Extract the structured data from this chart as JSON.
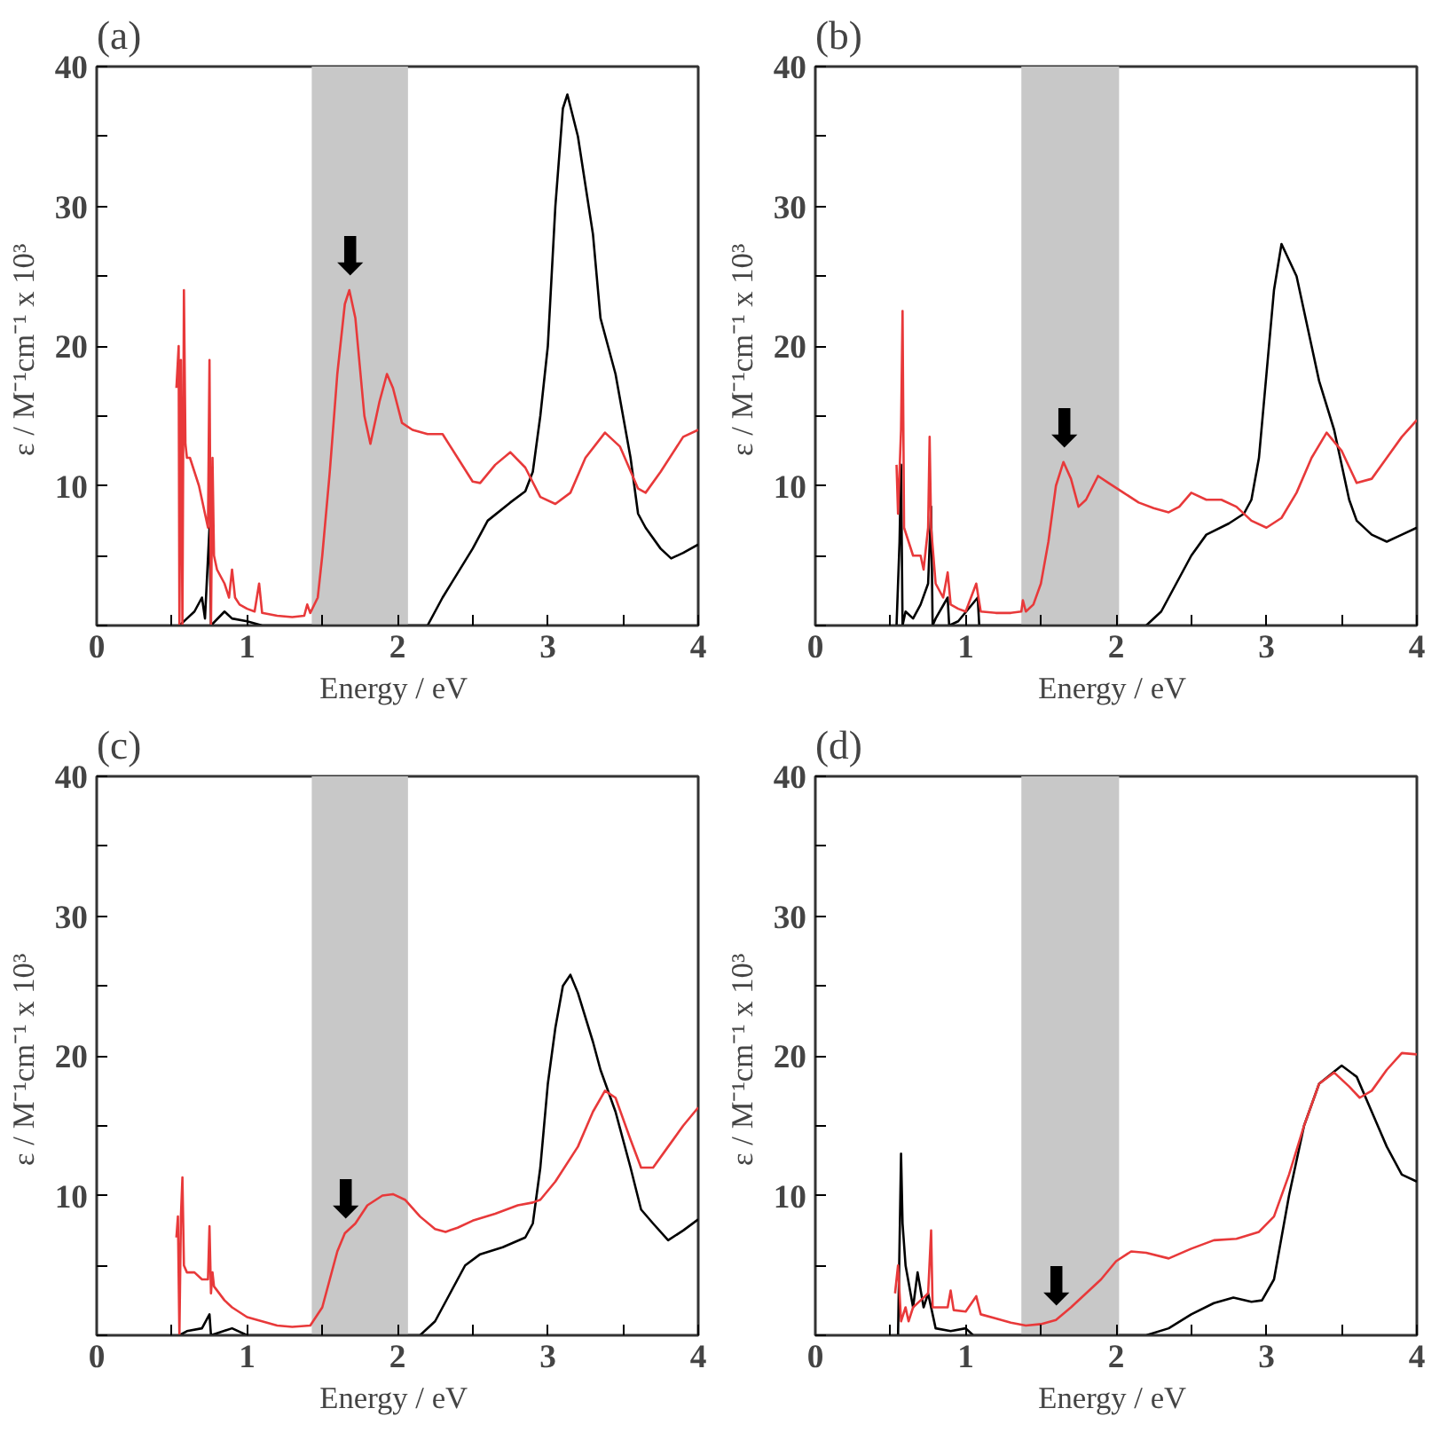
{
  "chart_data": [
    {
      "type": "line",
      "title": "(a)",
      "xlabel": "Energy  / eV",
      "ylabel": "ε / M⁻¹cm⁻¹  x 10³",
      "xlim": [
        0,
        4
      ],
      "ylim": [
        0,
        40
      ],
      "xticks": [
        0,
        {
          "value": 0.5,
          "label": null
        },
        1,
        {
          "value": 1.5,
          "label": null
        },
        2,
        {
          "value": 2.5,
          "label": null
        },
        3,
        {
          "value": 3.5,
          "label": null
        },
        4
      ],
      "yticks": [
        {
          "value": 0,
          "label": null
        },
        {
          "value": 5,
          "label": null
        },
        10,
        {
          "value": 15,
          "label": null
        },
        20,
        {
          "value": 25,
          "label": null
        },
        30,
        {
          "value": 35,
          "label": null
        },
        40
      ],
      "grid": false,
      "bands": [
        {
          "axis": "x",
          "from": 1.43,
          "to": 2.07,
          "color": "#c8c8c8"
        }
      ],
      "annotations": [
        {
          "text": "⬇",
          "x": 1.68,
          "y": 24
        }
      ],
      "series": [
        {
          "color": "#000000",
          "x": [
            0.55,
            0.6,
            0.65,
            0.7,
            0.72,
            0.75,
            0.76,
            0.85,
            0.9,
            1.0,
            1.1,
            2.2,
            2.3,
            2.5,
            2.6,
            2.75,
            2.85,
            2.9,
            2.95,
            3.0,
            3.05,
            3.1,
            3.13,
            3.2,
            3.3,
            3.35,
            3.45,
            3.55,
            3.6,
            3.65,
            3.75,
            3.82,
            3.9,
            4.0
          ],
          "values": [
            0,
            0.5,
            1,
            2,
            0.5,
            7,
            0,
            1,
            0.5,
            0.3,
            0,
            0,
            2,
            5.5,
            7.5,
            8.8,
            9.6,
            11,
            15,
            20,
            30,
            37,
            38,
            35,
            28,
            22,
            18,
            12,
            8,
            7,
            5.5,
            4.8,
            5.2,
            5.8
          ]
        },
        {
          "color": "#e8393a",
          "x": [
            0.53,
            0.545,
            0.55,
            0.56,
            0.57,
            0.58,
            0.59,
            0.6,
            0.62,
            0.65,
            0.68,
            0.7,
            0.72,
            0.74,
            0.75,
            0.76,
            0.77,
            0.78,
            0.8,
            0.85,
            0.88,
            0.9,
            0.92,
            0.95,
            1.0,
            1.05,
            1.08,
            1.1,
            1.2,
            1.3,
            1.38,
            1.4,
            1.42,
            1.47,
            1.5,
            1.55,
            1.6,
            1.65,
            1.68,
            1.72,
            1.78,
            1.82,
            1.88,
            1.93,
            1.97,
            2.03,
            2.1,
            2.2,
            2.3,
            2.4,
            2.5,
            2.55,
            2.65,
            2.75,
            2.85,
            2.95,
            3.05,
            3.15,
            3.25,
            3.38,
            3.48,
            3.6,
            3.65,
            3.75,
            3.9,
            4.0
          ],
          "values": [
            17,
            20,
            0,
            19,
            0,
            24,
            13,
            12,
            12,
            11,
            10,
            9,
            8,
            7,
            19,
            0,
            12,
            5,
            4,
            3,
            2,
            4,
            2,
            1.5,
            1.2,
            1,
            3,
            0.9,
            0.7,
            0.6,
            0.7,
            1.5,
            0.9,
            2,
            5,
            11,
            18,
            23,
            24,
            22,
            15,
            13,
            16,
            18,
            17,
            14.5,
            14,
            13.7,
            13.7,
            12,
            10.3,
            10.2,
            11.5,
            12.4,
            11.3,
            9.2,
            8.7,
            9.5,
            12,
            13.8,
            12.8,
            9.8,
            9.5,
            11,
            13.5,
            14
          ]
        }
      ]
    },
    {
      "type": "line",
      "title": "(b)",
      "xlabel": "Energy  / eV",
      "ylabel": "ε / M⁻¹cm⁻¹  x 10³",
      "xlim": [
        0,
        4
      ],
      "ylim": [
        0,
        40
      ],
      "xticks": [
        0,
        {
          "value": 0.5,
          "label": null
        },
        1,
        {
          "value": 1.5,
          "label": null
        },
        2,
        {
          "value": 2.5,
          "label": null
        },
        3,
        {
          "value": 3.5,
          "label": null
        },
        4
      ],
      "yticks": [
        {
          "value": 0,
          "label": null
        },
        {
          "value": 5,
          "label": null
        },
        10,
        {
          "value": 15,
          "label": null
        },
        20,
        {
          "value": 25,
          "label": null
        },
        30,
        {
          "value": 35,
          "label": null
        },
        40
      ],
      "grid": false,
      "bands": [
        {
          "axis": "x",
          "from": 1.37,
          "to": 2.02,
          "color": "#c8c8c8"
        }
      ],
      "annotations": [
        {
          "text": "⬇",
          "x": 1.65,
          "y": 11.7
        }
      ],
      "series": [
        {
          "color": "#000000",
          "x": [
            0.54,
            0.56,
            0.57,
            0.58,
            0.6,
            0.65,
            0.7,
            0.75,
            0.77,
            0.78,
            0.8,
            0.88,
            0.89,
            0.95,
            1.08,
            1.09,
            1.15,
            2.2,
            2.3,
            2.4,
            2.5,
            2.6,
            2.75,
            2.85,
            2.9,
            2.95,
            3.0,
            3.05,
            3.1,
            3.2,
            3.3,
            3.35,
            3.45,
            3.55,
            3.6,
            3.7,
            3.8,
            3.9,
            4.0
          ],
          "values": [
            0,
            6,
            11.5,
            0,
            1,
            0.5,
            1.5,
            3,
            8.5,
            0,
            0.5,
            2,
            0,
            0.3,
            2,
            0,
            0,
            0,
            1,
            3,
            5,
            6.5,
            7.3,
            8,
            9,
            12,
            18,
            24,
            27.3,
            25,
            20,
            17.5,
            14,
            9,
            7.5,
            6.5,
            6,
            6.5,
            7
          ]
        },
        {
          "color": "#e8393a",
          "x": [
            0.54,
            0.55,
            0.57,
            0.58,
            0.59,
            0.62,
            0.65,
            0.7,
            0.72,
            0.75,
            0.76,
            0.77,
            0.8,
            0.85,
            0.88,
            0.9,
            0.95,
            1.0,
            1.07,
            1.1,
            1.2,
            1.3,
            1.37,
            1.38,
            1.4,
            1.45,
            1.5,
            1.55,
            1.6,
            1.65,
            1.7,
            1.75,
            1.8,
            1.88,
            1.95,
            2.05,
            2.15,
            2.25,
            2.35,
            2.42,
            2.5,
            2.6,
            2.7,
            2.8,
            2.9,
            3.0,
            3.1,
            3.2,
            3.3,
            3.4,
            3.5,
            3.6,
            3.7,
            3.8,
            3.9,
            4.0
          ],
          "values": [
            11.5,
            8,
            14,
            22.5,
            7,
            6,
            5,
            5,
            4,
            7,
            13.5,
            7,
            3,
            2,
            3.8,
            1.5,
            1.2,
            1,
            3,
            1,
            0.9,
            0.9,
            1,
            1.8,
            1,
            1.5,
            3,
            6,
            10,
            11.7,
            10.5,
            8.5,
            9,
            10.7,
            10.2,
            9.5,
            8.8,
            8.4,
            8.1,
            8.5,
            9.5,
            9,
            9,
            8.5,
            7.5,
            7,
            7.7,
            9.5,
            12,
            13.8,
            12.5,
            10.2,
            10.5,
            12,
            13.5,
            14.7
          ]
        }
      ]
    },
    {
      "type": "line",
      "title": "(c)",
      "xlabel": "Energy  / eV",
      "ylabel": "ε / M⁻¹cm⁻¹  x 10³",
      "xlim": [
        0,
        4
      ],
      "ylim": [
        0,
        40
      ],
      "xticks": [
        0,
        {
          "value": 0.5,
          "label": null
        },
        1,
        {
          "value": 1.5,
          "label": null
        },
        2,
        {
          "value": 2.5,
          "label": null
        },
        3,
        {
          "value": 3.5,
          "label": null
        },
        4
      ],
      "yticks": [
        {
          "value": 0,
          "label": null
        },
        {
          "value": 5,
          "label": null
        },
        10,
        {
          "value": 15,
          "label": null
        },
        20,
        {
          "value": 25,
          "label": null
        },
        30,
        {
          "value": 35,
          "label": null
        },
        40
      ],
      "grid": false,
      "bands": [
        {
          "axis": "x",
          "from": 1.43,
          "to": 2.07,
          "color": "#c8c8c8"
        }
      ],
      "annotations": [
        {
          "text": "⬇",
          "x": 1.65,
          "y": 7.3
        }
      ],
      "series": [
        {
          "color": "#000000",
          "x": [
            0.55,
            0.6,
            0.7,
            0.75,
            0.76,
            0.9,
            1.0,
            2.15,
            2.25,
            2.35,
            2.45,
            2.55,
            2.7,
            2.85,
            2.9,
            2.95,
            3.0,
            3.05,
            3.1,
            3.15,
            3.2,
            3.3,
            3.35,
            3.45,
            3.55,
            3.62,
            3.7,
            3.8,
            3.9,
            4.0
          ],
          "values": [
            0,
            0.3,
            0.5,
            1.5,
            0,
            0.5,
            0,
            0,
            1,
            3,
            5,
            5.8,
            6.3,
            7,
            8,
            12,
            18,
            22,
            25,
            25.8,
            24.5,
            21,
            19,
            16,
            12,
            9,
            8,
            6.8,
            7.5,
            8.3
          ]
        },
        {
          "color": "#e8393a",
          "x": [
            0.53,
            0.54,
            0.55,
            0.56,
            0.57,
            0.58,
            0.6,
            0.65,
            0.7,
            0.74,
            0.75,
            0.76,
            0.77,
            0.78,
            0.85,
            0.9,
            1.0,
            1.1,
            1.2,
            1.3,
            1.42,
            1.5,
            1.55,
            1.6,
            1.65,
            1.72,
            1.8,
            1.9,
            1.97,
            2.05,
            2.15,
            2.25,
            2.32,
            2.4,
            2.5,
            2.65,
            2.8,
            2.9,
            2.95,
            3.05,
            3.2,
            3.3,
            3.38,
            3.45,
            3.55,
            3.62,
            3.7,
            3.8,
            3.9,
            4.0
          ],
          "values": [
            7,
            8.5,
            0,
            8.5,
            11.3,
            5,
            4.5,
            4.5,
            4,
            4,
            7.8,
            3,
            4.5,
            3.5,
            2.5,
            2,
            1.3,
            1,
            0.7,
            0.6,
            0.7,
            2,
            4,
            6,
            7.3,
            8,
            9.3,
            10,
            10.1,
            9.7,
            8.5,
            7.6,
            7.4,
            7.7,
            8.2,
            8.7,
            9.3,
            9.5,
            9.7,
            11,
            13.5,
            16,
            17.5,
            17,
            14,
            12,
            12,
            13.5,
            15,
            16.3
          ]
        }
      ]
    },
    {
      "type": "line",
      "title": "(d)",
      "xlabel": "Energy  / eV",
      "ylabel": "ε / M⁻¹cm⁻¹  x 10³",
      "xlim": [
        0,
        4
      ],
      "ylim": [
        0,
        40
      ],
      "xticks": [
        0,
        {
          "value": 0.5,
          "label": null
        },
        1,
        {
          "value": 1.5,
          "label": null
        },
        2,
        {
          "value": 2.5,
          "label": null
        },
        3,
        {
          "value": 3.5,
          "label": null
        },
        4
      ],
      "yticks": [
        {
          "value": 0,
          "label": null
        },
        {
          "value": 5,
          "label": null
        },
        10,
        {
          "value": 15,
          "label": null
        },
        20,
        {
          "value": 25,
          "label": null
        },
        30,
        {
          "value": 35,
          "label": null
        },
        40
      ],
      "grid": false,
      "bands": [
        {
          "axis": "x",
          "from": 1.37,
          "to": 2.02,
          "color": "#c8c8c8"
        }
      ],
      "annotations": [
        {
          "text": "⬇",
          "x": 1.6,
          "y": 1.1
        }
      ],
      "series": [
        {
          "color": "#000000",
          "x": [
            0.55,
            0.57,
            0.58,
            0.6,
            0.65,
            0.68,
            0.72,
            0.75,
            0.8,
            0.9,
            1.0,
            1.05,
            2.2,
            2.35,
            2.5,
            2.65,
            2.78,
            2.9,
            2.97,
            3.05,
            3.15,
            3.25,
            3.35,
            3.5,
            3.6,
            3.7,
            3.8,
            3.9,
            4.0
          ],
          "values": [
            0,
            13,
            8,
            5,
            2,
            4.5,
            2,
            3,
            0.5,
            0.3,
            0.5,
            0,
            0,
            0.5,
            1.5,
            2.3,
            2.7,
            2.4,
            2.5,
            4,
            10,
            15,
            18,
            19.3,
            18.5,
            16,
            13.5,
            11.5,
            11
          ]
        },
        {
          "color": "#e8393a",
          "x": [
            0.53,
            0.55,
            0.57,
            0.6,
            0.62,
            0.65,
            0.7,
            0.75,
            0.77,
            0.78,
            0.8,
            0.88,
            0.9,
            0.92,
            1.0,
            1.07,
            1.1,
            1.2,
            1.3,
            1.4,
            1.5,
            1.6,
            1.7,
            1.8,
            1.9,
            2.0,
            2.1,
            2.2,
            2.35,
            2.5,
            2.65,
            2.8,
            2.95,
            3.05,
            3.15,
            3.25,
            3.35,
            3.45,
            3.55,
            3.62,
            3.7,
            3.8,
            3.9,
            4.0
          ],
          "values": [
            3,
            5,
            1,
            2,
            1,
            2,
            2.5,
            3,
            7.5,
            2,
            2,
            2,
            3.2,
            1.8,
            1.7,
            2.8,
            1.5,
            1.2,
            0.9,
            0.7,
            0.8,
            1.1,
            2,
            3,
            4,
            5.3,
            6,
            5.9,
            5.5,
            6.2,
            6.8,
            6.9,
            7.4,
            8.5,
            11.5,
            15,
            18,
            18.8,
            17.8,
            17,
            17.5,
            19,
            20.2,
            20.1
          ]
        }
      ]
    }
  ]
}
